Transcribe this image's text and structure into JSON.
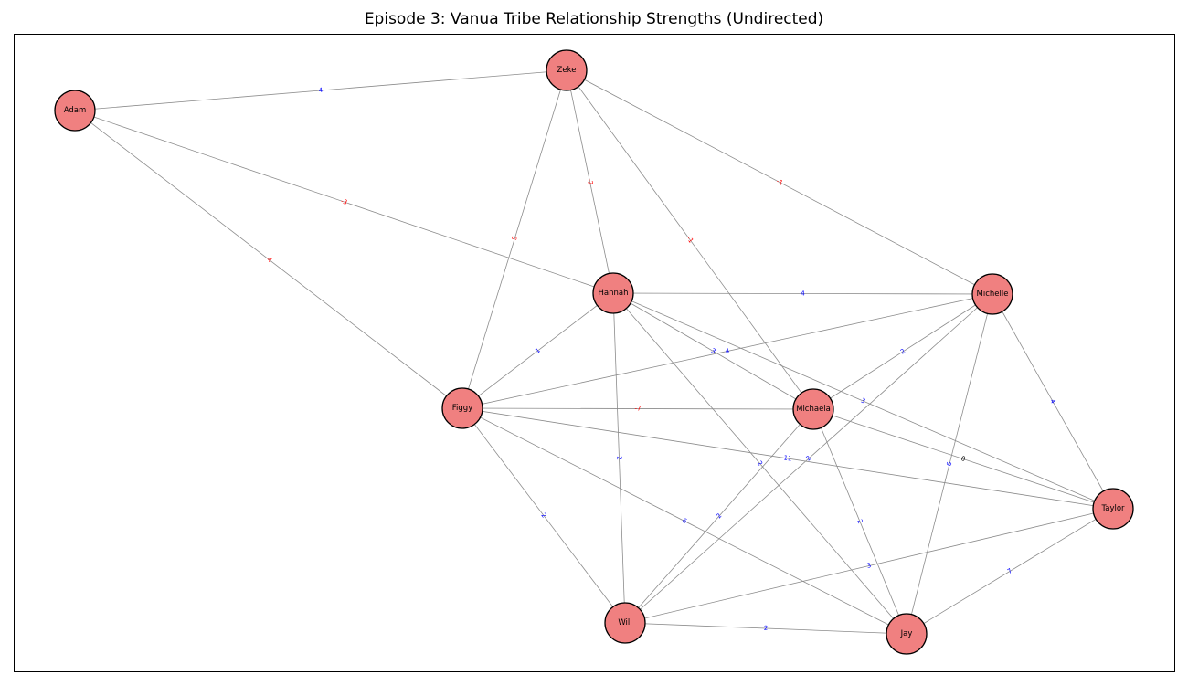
{
  "title": "Episode 3: Vanua Tribe Relationship Strengths (Undirected)",
  "colors": {
    "positive": "#0000ff",
    "negative": "#ff0000",
    "zero": "#000000",
    "node_fill": "#f08080",
    "edge": "#8c8c8c"
  },
  "graph": {
    "nodes": [
      "Zeke",
      "Adam",
      "Hannah",
      "Michelle",
      "Figgy",
      "Michaela",
      "Taylor",
      "Will",
      "Jay"
    ],
    "edges": [
      {
        "source": "Adam",
        "target": "Zeke",
        "weight": 4
      },
      {
        "source": "Adam",
        "target": "Hannah",
        "weight": -3
      },
      {
        "source": "Adam",
        "target": "Figgy",
        "weight": -4
      },
      {
        "source": "Zeke",
        "target": "Hannah",
        "weight": -2
      },
      {
        "source": "Zeke",
        "target": "Figgy",
        "weight": -5
      },
      {
        "source": "Zeke",
        "target": "Michaela",
        "weight": -1
      },
      {
        "source": "Zeke",
        "target": "Michelle",
        "weight": -1
      },
      {
        "source": "Hannah",
        "target": "Michelle",
        "weight": 4
      },
      {
        "source": "Hannah",
        "target": "Figgy",
        "weight": 1
      },
      {
        "source": "Hannah",
        "target": "Michaela",
        "weight": 3
      },
      {
        "source": "Hannah",
        "target": "Taylor",
        "weight": 3
      },
      {
        "source": "Hannah",
        "target": "Will",
        "weight": 2
      },
      {
        "source": "Hannah",
        "target": "Jay",
        "weight": 2
      },
      {
        "source": "Michelle",
        "target": "Figgy",
        "weight": 4
      },
      {
        "source": "Michelle",
        "target": "Michaela",
        "weight": 2
      },
      {
        "source": "Michelle",
        "target": "Taylor",
        "weight": 4
      },
      {
        "source": "Michelle",
        "target": "Will",
        "weight": 2
      },
      {
        "source": "Michelle",
        "target": "Jay",
        "weight": 6
      },
      {
        "source": "Figgy",
        "target": "Michaela",
        "weight": -7
      },
      {
        "source": "Figgy",
        "target": "Taylor",
        "weight": 11
      },
      {
        "source": "Figgy",
        "target": "Will",
        "weight": 2
      },
      {
        "source": "Figgy",
        "target": "Jay",
        "weight": 6
      },
      {
        "source": "Michaela",
        "target": "Taylor",
        "weight": 0
      },
      {
        "source": "Michaela",
        "target": "Will",
        "weight": 2
      },
      {
        "source": "Michaela",
        "target": "Jay",
        "weight": 2
      },
      {
        "source": "Taylor",
        "target": "Will",
        "weight": 3
      },
      {
        "source": "Taylor",
        "target": "Jay",
        "weight": 7
      },
      {
        "source": "Will",
        "target": "Jay",
        "weight": 2
      }
    ]
  }
}
